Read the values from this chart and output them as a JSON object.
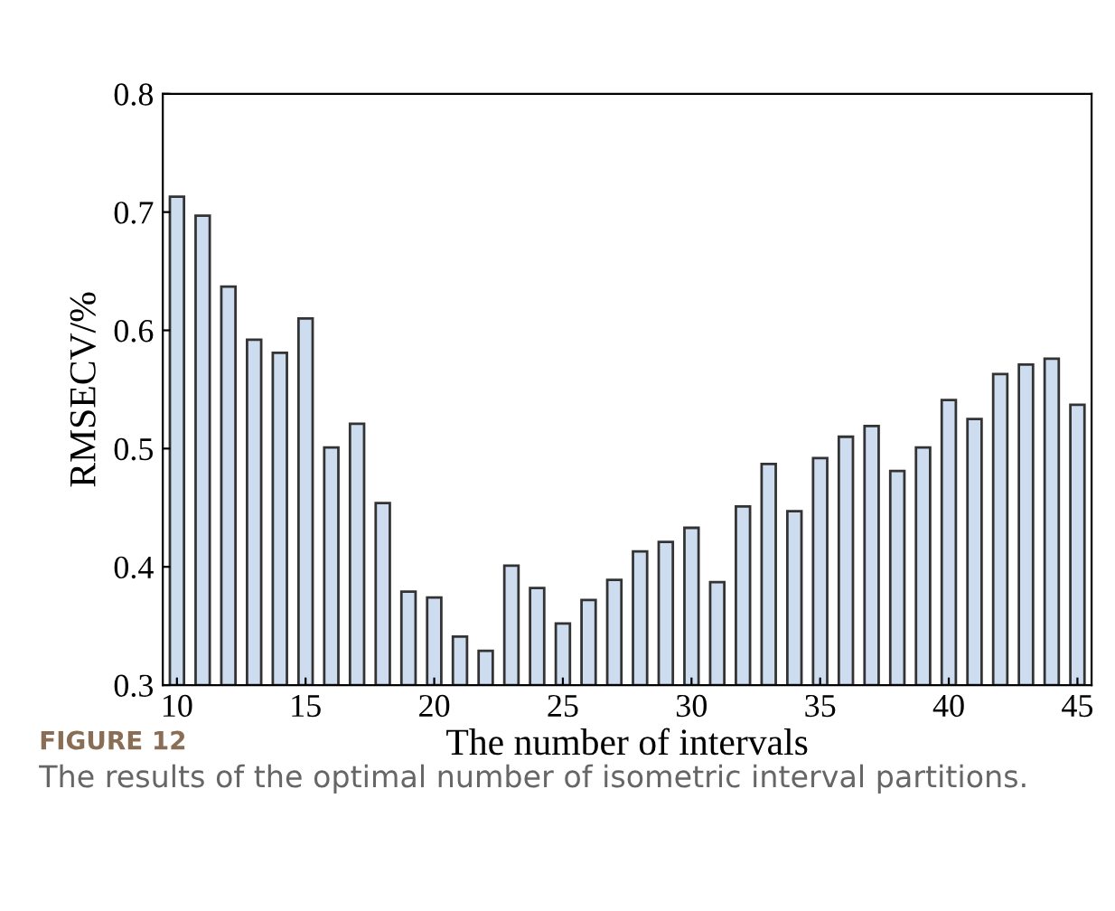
{
  "chart_data": {
    "type": "bar",
    "xlabel": "The number of intervals",
    "ylabel": "RMSECV/%",
    "x": [
      10,
      11,
      12,
      13,
      14,
      15,
      16,
      17,
      18,
      19,
      20,
      21,
      22,
      23,
      24,
      25,
      26,
      27,
      28,
      29,
      30,
      31,
      32,
      33,
      34,
      35,
      36,
      37,
      38,
      39,
      40,
      41,
      42,
      43,
      44,
      45
    ],
    "values": [
      0.713,
      0.697,
      0.637,
      0.592,
      0.581,
      0.61,
      0.501,
      0.521,
      0.454,
      0.379,
      0.374,
      0.341,
      0.329,
      0.401,
      0.382,
      0.352,
      0.372,
      0.389,
      0.413,
      0.421,
      0.433,
      0.387,
      0.451,
      0.487,
      0.447,
      0.492,
      0.51,
      0.519,
      0.481,
      0.501,
      0.541,
      0.525,
      0.563,
      0.571,
      0.576,
      0.537
    ],
    "color": "#cddcee",
    "xlim": [
      9.45,
      45.55
    ],
    "xticks": [
      10,
      15,
      20,
      25,
      30,
      35,
      40,
      45
    ],
    "ylim": [
      0.3,
      0.8
    ],
    "yticks": [
      0.3,
      0.4,
      0.5,
      0.6,
      0.7,
      0.8
    ],
    "grid": false,
    "annotations": [
      "FIGURE 12",
      "The results of the optimal number of isometric interval partitions."
    ]
  }
}
